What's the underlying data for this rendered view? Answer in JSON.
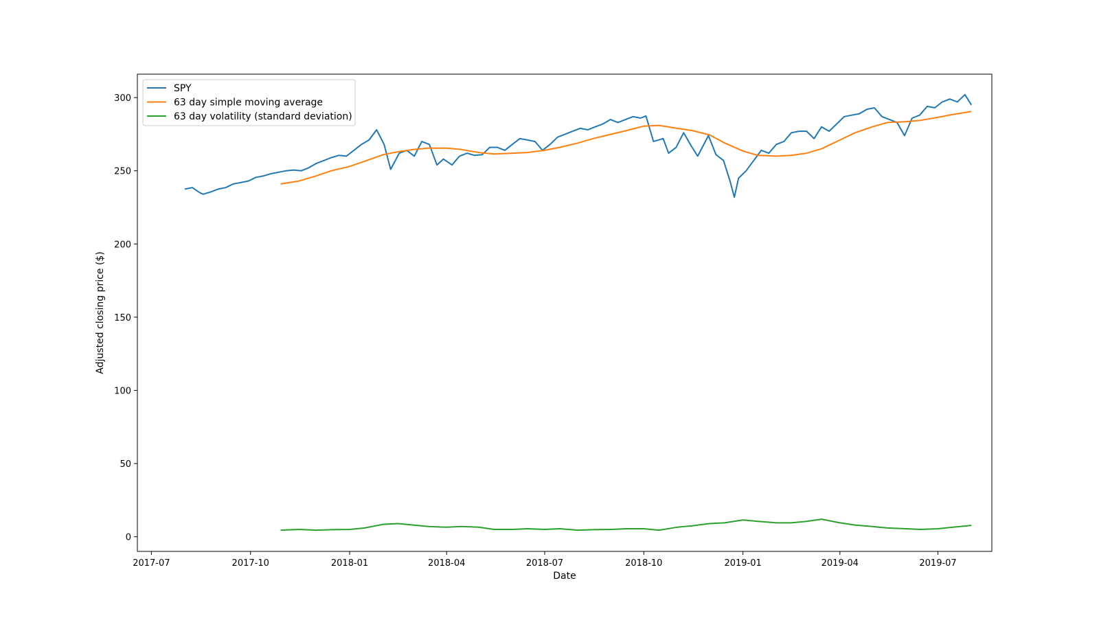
{
  "chart_data": {
    "type": "line",
    "title": "",
    "xlabel": "Date",
    "ylabel": "Adjusted closing price ($)",
    "x_ticks": [
      "2017-07",
      "2017-10",
      "2018-01",
      "2018-04",
      "2018-07",
      "2018-10",
      "2019-01",
      "2019-04",
      "2019-07"
    ],
    "y_ticks": [
      0,
      50,
      100,
      150,
      200,
      250,
      300
    ],
    "xlim": [
      "2017-06-18",
      "2019-08-20"
    ],
    "ylim": [
      -10,
      316
    ],
    "grid": false,
    "legend_position": "upper-left",
    "series": [
      {
        "name": "SPY",
        "color": "#1f77b4",
        "points": [
          [
            "2017-08-01",
            237.5
          ],
          [
            "2017-08-08",
            238.5
          ],
          [
            "2017-08-15",
            235.0
          ],
          [
            "2017-08-18",
            234.0
          ],
          [
            "2017-08-25",
            235.5
          ],
          [
            "2017-09-01",
            237.5
          ],
          [
            "2017-09-08",
            238.5
          ],
          [
            "2017-09-15",
            241.0
          ],
          [
            "2017-09-22",
            242.0
          ],
          [
            "2017-09-29",
            243.0
          ],
          [
            "2017-10-06",
            245.5
          ],
          [
            "2017-10-13",
            246.5
          ],
          [
            "2017-10-20",
            248.0
          ],
          [
            "2017-10-27",
            249.0
          ],
          [
            "2017-11-03",
            250.0
          ],
          [
            "2017-11-10",
            250.5
          ],
          [
            "2017-11-17",
            250.0
          ],
          [
            "2017-11-24",
            252.0
          ],
          [
            "2017-12-01",
            255.0
          ],
          [
            "2017-12-08",
            257.0
          ],
          [
            "2017-12-15",
            259.0
          ],
          [
            "2017-12-22",
            260.5
          ],
          [
            "2017-12-29",
            260.0
          ],
          [
            "2018-01-05",
            264.0
          ],
          [
            "2018-01-12",
            268.0
          ],
          [
            "2018-01-19",
            271.0
          ],
          [
            "2018-01-26",
            278.0
          ],
          [
            "2018-02-02",
            268.0
          ],
          [
            "2018-02-08",
            251.0
          ],
          [
            "2018-02-16",
            262.0
          ],
          [
            "2018-02-23",
            264.0
          ],
          [
            "2018-03-02",
            260.0
          ],
          [
            "2018-03-09",
            270.0
          ],
          [
            "2018-03-16",
            268.0
          ],
          [
            "2018-03-23",
            254.0
          ],
          [
            "2018-03-29",
            258.0
          ],
          [
            "2018-04-06",
            254.0
          ],
          [
            "2018-04-13",
            260.0
          ],
          [
            "2018-04-20",
            262.0
          ],
          [
            "2018-04-27",
            260.5
          ],
          [
            "2018-05-04",
            261.0
          ],
          [
            "2018-05-11",
            266.0
          ],
          [
            "2018-05-18",
            266.0
          ],
          [
            "2018-05-25",
            264.0
          ],
          [
            "2018-06-01",
            268.0
          ],
          [
            "2018-06-08",
            272.0
          ],
          [
            "2018-06-15",
            271.0
          ],
          [
            "2018-06-22",
            270.0
          ],
          [
            "2018-06-29",
            264.0
          ],
          [
            "2018-07-06",
            268.0
          ],
          [
            "2018-07-13",
            273.0
          ],
          [
            "2018-07-20",
            275.0
          ],
          [
            "2018-07-27",
            277.0
          ],
          [
            "2018-08-03",
            279.0
          ],
          [
            "2018-08-10",
            278.0
          ],
          [
            "2018-08-17",
            280.0
          ],
          [
            "2018-08-24",
            282.0
          ],
          [
            "2018-08-31",
            285.0
          ],
          [
            "2018-09-07",
            283.0
          ],
          [
            "2018-09-14",
            285.0
          ],
          [
            "2018-09-21",
            287.0
          ],
          [
            "2018-09-28",
            286.0
          ],
          [
            "2018-10-03",
            287.5
          ],
          [
            "2018-10-10",
            270.0
          ],
          [
            "2018-10-19",
            272.0
          ],
          [
            "2018-10-24",
            262.0
          ],
          [
            "2018-10-31",
            266.0
          ],
          [
            "2018-11-07",
            276.0
          ],
          [
            "2018-11-14",
            267.0
          ],
          [
            "2018-11-20",
            260.0
          ],
          [
            "2018-11-30",
            274.0
          ],
          [
            "2018-12-07",
            261.0
          ],
          [
            "2018-12-14",
            257.0
          ],
          [
            "2018-12-20",
            243.0
          ],
          [
            "2018-12-24",
            232.0
          ],
          [
            "2018-12-28",
            245.0
          ],
          [
            "2019-01-04",
            250.0
          ],
          [
            "2019-01-11",
            257.0
          ],
          [
            "2019-01-18",
            264.0
          ],
          [
            "2019-01-25",
            262.0
          ],
          [
            "2019-02-01",
            268.0
          ],
          [
            "2019-02-08",
            270.0
          ],
          [
            "2019-02-15",
            276.0
          ],
          [
            "2019-02-22",
            277.0
          ],
          [
            "2019-03-01",
            277.0
          ],
          [
            "2019-03-08",
            272.0
          ],
          [
            "2019-03-15",
            280.0
          ],
          [
            "2019-03-22",
            277.0
          ],
          [
            "2019-03-29",
            282.0
          ],
          [
            "2019-04-05",
            287.0
          ],
          [
            "2019-04-12",
            288.0
          ],
          [
            "2019-04-19",
            289.0
          ],
          [
            "2019-04-26",
            292.0
          ],
          [
            "2019-05-03",
            293.0
          ],
          [
            "2019-05-10",
            287.0
          ],
          [
            "2019-05-17",
            285.0
          ],
          [
            "2019-05-24",
            283.0
          ],
          [
            "2019-05-31",
            274.0
          ],
          [
            "2019-06-07",
            286.0
          ],
          [
            "2019-06-14",
            288.0
          ],
          [
            "2019-06-21",
            294.0
          ],
          [
            "2019-06-28",
            293.0
          ],
          [
            "2019-07-05",
            297.0
          ],
          [
            "2019-07-12",
            299.0
          ],
          [
            "2019-07-19",
            297.0
          ],
          [
            "2019-07-26",
            302.0
          ],
          [
            "2019-08-01",
            295.0
          ]
        ]
      },
      {
        "name": "63 day simple moving average",
        "color": "#ff7f0e",
        "points": [
          [
            "2017-10-29",
            241.0
          ],
          [
            "2017-11-15",
            243.0
          ],
          [
            "2017-12-01",
            246.5
          ],
          [
            "2017-12-15",
            250.0
          ],
          [
            "2018-01-01",
            253.0
          ],
          [
            "2018-01-15",
            256.5
          ],
          [
            "2018-02-01",
            261.0
          ],
          [
            "2018-02-15",
            263.0
          ],
          [
            "2018-03-01",
            264.5
          ],
          [
            "2018-03-15",
            265.5
          ],
          [
            "2018-04-01",
            265.5
          ],
          [
            "2018-04-15",
            264.5
          ],
          [
            "2018-05-01",
            262.5
          ],
          [
            "2018-05-15",
            261.5
          ],
          [
            "2018-06-01",
            262.0
          ],
          [
            "2018-06-15",
            262.5
          ],
          [
            "2018-07-01",
            264.0
          ],
          [
            "2018-07-15",
            266.0
          ],
          [
            "2018-08-01",
            269.0
          ],
          [
            "2018-08-15",
            272.0
          ],
          [
            "2018-09-01",
            275.0
          ],
          [
            "2018-09-15",
            277.5
          ],
          [
            "2018-10-01",
            280.5
          ],
          [
            "2018-10-15",
            281.0
          ],
          [
            "2018-11-01",
            279.0
          ],
          [
            "2018-11-15",
            277.5
          ],
          [
            "2018-12-01",
            274.5
          ],
          [
            "2018-12-15",
            269.0
          ],
          [
            "2019-01-01",
            263.5
          ],
          [
            "2019-01-15",
            260.5
          ],
          [
            "2019-02-01",
            260.0
          ],
          [
            "2019-02-15",
            260.5
          ],
          [
            "2019-03-01",
            262.0
          ],
          [
            "2019-03-15",
            265.0
          ],
          [
            "2019-04-01",
            271.0
          ],
          [
            "2019-04-15",
            276.0
          ],
          [
            "2019-05-01",
            280.0
          ],
          [
            "2019-05-15",
            283.0
          ],
          [
            "2019-06-01",
            283.5
          ],
          [
            "2019-06-15",
            284.5
          ],
          [
            "2019-07-01",
            286.5
          ],
          [
            "2019-07-15",
            288.5
          ],
          [
            "2019-08-01",
            290.5
          ]
        ]
      },
      {
        "name": "63 day volatility (standard deviation)",
        "color": "#2ca02c",
        "points": [
          [
            "2017-10-29",
            4.5
          ],
          [
            "2017-11-15",
            5.0
          ],
          [
            "2017-12-01",
            4.5
          ],
          [
            "2017-12-15",
            4.8
          ],
          [
            "2018-01-01",
            5.0
          ],
          [
            "2018-01-15",
            6.0
          ],
          [
            "2018-02-01",
            8.5
          ],
          [
            "2018-02-15",
            9.0
          ],
          [
            "2018-03-01",
            8.0
          ],
          [
            "2018-03-15",
            7.0
          ],
          [
            "2018-04-01",
            6.5
          ],
          [
            "2018-04-15",
            7.0
          ],
          [
            "2018-05-01",
            6.5
          ],
          [
            "2018-05-15",
            5.0
          ],
          [
            "2018-06-01",
            5.0
          ],
          [
            "2018-06-15",
            5.5
          ],
          [
            "2018-07-01",
            5.0
          ],
          [
            "2018-07-15",
            5.5
          ],
          [
            "2018-08-01",
            4.5
          ],
          [
            "2018-08-15",
            4.8
          ],
          [
            "2018-09-01",
            5.0
          ],
          [
            "2018-09-15",
            5.5
          ],
          [
            "2018-10-01",
            5.5
          ],
          [
            "2018-10-15",
            4.5
          ],
          [
            "2018-11-01",
            6.5
          ],
          [
            "2018-11-15",
            7.5
          ],
          [
            "2018-12-01",
            9.0
          ],
          [
            "2018-12-15",
            9.5
          ],
          [
            "2019-01-01",
            11.5
          ],
          [
            "2019-01-15",
            10.5
          ],
          [
            "2019-02-01",
            9.5
          ],
          [
            "2019-02-15",
            9.5
          ],
          [
            "2019-03-01",
            10.5
          ],
          [
            "2019-03-15",
            12.0
          ],
          [
            "2019-04-01",
            9.5
          ],
          [
            "2019-04-15",
            8.0
          ],
          [
            "2019-05-01",
            7.0
          ],
          [
            "2019-05-15",
            6.0
          ],
          [
            "2019-06-01",
            5.5
          ],
          [
            "2019-06-15",
            5.0
          ],
          [
            "2019-07-01",
            5.5
          ],
          [
            "2019-07-15",
            6.5
          ],
          [
            "2019-08-01",
            7.8
          ]
        ]
      }
    ]
  }
}
